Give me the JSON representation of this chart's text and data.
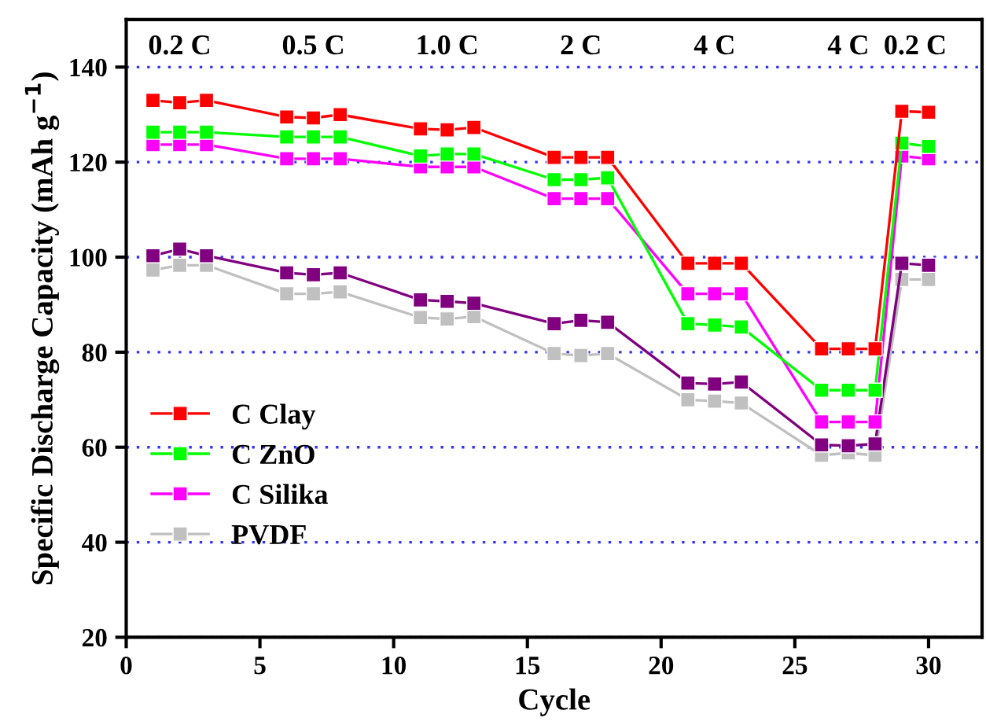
{
  "chart_data": {
    "type": "line",
    "xlabel": "Cycle",
    "ylabel": "Specific Discharge Capacity (mAh g$^{−1}$)",
    "x": [
      1,
      2,
      3,
      6,
      7,
      8,
      11,
      12,
      13,
      16,
      17,
      18,
      21,
      22,
      23,
      26,
      27,
      28,
      29,
      30
    ],
    "series": [
      {
        "name": "C Clay",
        "color": "#ff0000",
        "values": [
          133,
          132.5,
          133,
          129.5,
          129.3,
          130,
          127,
          126.8,
          127.3,
          121,
          121,
          121,
          98.7,
          98.7,
          98.7,
          80.7,
          80.7,
          80.7,
          130.7,
          130.5
        ]
      },
      {
        "name": "C ZnO",
        "color": "#00ff00",
        "values": [
          126.3,
          126.3,
          126.3,
          125.3,
          125.3,
          125.3,
          121.3,
          121.7,
          121.7,
          116.3,
          116.3,
          116.7,
          86,
          85.7,
          85.3,
          72,
          72,
          72,
          124,
          123.3
        ]
      },
      {
        "name": "C Silika",
        "color": "#ff00ff",
        "values": [
          123.7,
          123.7,
          123.7,
          120.7,
          120.7,
          120.7,
          119,
          119,
          119,
          112.3,
          112.3,
          112.3,
          92.3,
          92.3,
          92.3,
          65.3,
          65.3,
          65.3,
          121.3,
          120.7
        ]
      },
      {
        "color": "#800080",
        "values": [
          100.3,
          101.7,
          100.3,
          96.7,
          96.3,
          96.7,
          91,
          90.7,
          90.3,
          86,
          86.7,
          86.3,
          73.5,
          73.3,
          73.7,
          60.5,
          60.3,
          60.7,
          98.7,
          98.3
        ]
      },
      {
        "name": "PVDF",
        "color": "#c0c0c0",
        "values": [
          97.3,
          98.3,
          98.3,
          92.3,
          92.3,
          92.7,
          87.3,
          87,
          87.5,
          79.7,
          79.3,
          79.7,
          70,
          69.7,
          69.3,
          58.3,
          58.8,
          58.3,
          95.3,
          95.3
        ]
      }
    ],
    "annotations": [
      "0.2 C",
      "0.5 C",
      "1.0 C",
      "2 C",
      "4 C",
      "4 C",
      "0.2 C"
    ],
    "xlim": [
      0,
      32
    ],
    "ylim": [
      20,
      150
    ],
    "xticks": [
      0,
      5,
      10,
      15,
      20,
      25,
      30
    ],
    "yticks": [
      20,
      40,
      60,
      80,
      100,
      120,
      140
    ],
    "grid": "y",
    "legend": "bottom left",
    "marker": "square",
    "line_style": "solid"
  }
}
